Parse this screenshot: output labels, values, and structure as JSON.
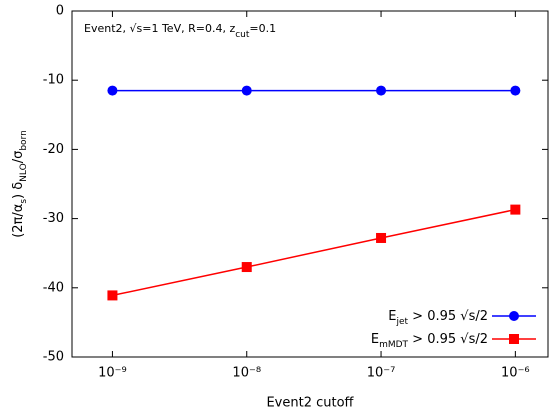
{
  "chart_data": {
    "type": "line",
    "annotation": [
      "Event2, √s=1 TeV, R=0.4, z",
      "cut",
      "=0.1"
    ],
    "x_label": "Event2 cutoff",
    "y_label": [
      "(2π/α",
      "s",
      ") δ",
      "NLO",
      "/σ",
      "born"
    ],
    "x": [
      1e-09,
      1e-08,
      1e-07,
      1e-06
    ],
    "xscale": "log",
    "xlim": [
      5e-10,
      1.75e-06
    ],
    "xticks": [
      {
        "value": 1e-09,
        "label": "10⁻⁹"
      },
      {
        "value": 1e-08,
        "label": "10⁻⁸"
      },
      {
        "value": 1e-07,
        "label": "10⁻⁷"
      },
      {
        "value": 1e-06,
        "label": "10⁻⁶"
      }
    ],
    "ylim": [
      -50,
      0
    ],
    "yticks": [
      0,
      -10,
      -20,
      -30,
      -40,
      -50
    ],
    "legend": "lower right",
    "series": [
      {
        "name": [
          "E",
          "jet",
          " > 0.95 √s/2"
        ],
        "color": "#0000ff",
        "marker": "circle",
        "values": [
          -11.5,
          -11.5,
          -11.5,
          -11.5
        ]
      },
      {
        "name": [
          "E",
          "mMDT",
          " > 0.95 √s/2"
        ],
        "color": "#ff0000",
        "marker": "square",
        "values": [
          -41.1,
          -37.0,
          -32.8,
          -28.7
        ]
      }
    ]
  }
}
